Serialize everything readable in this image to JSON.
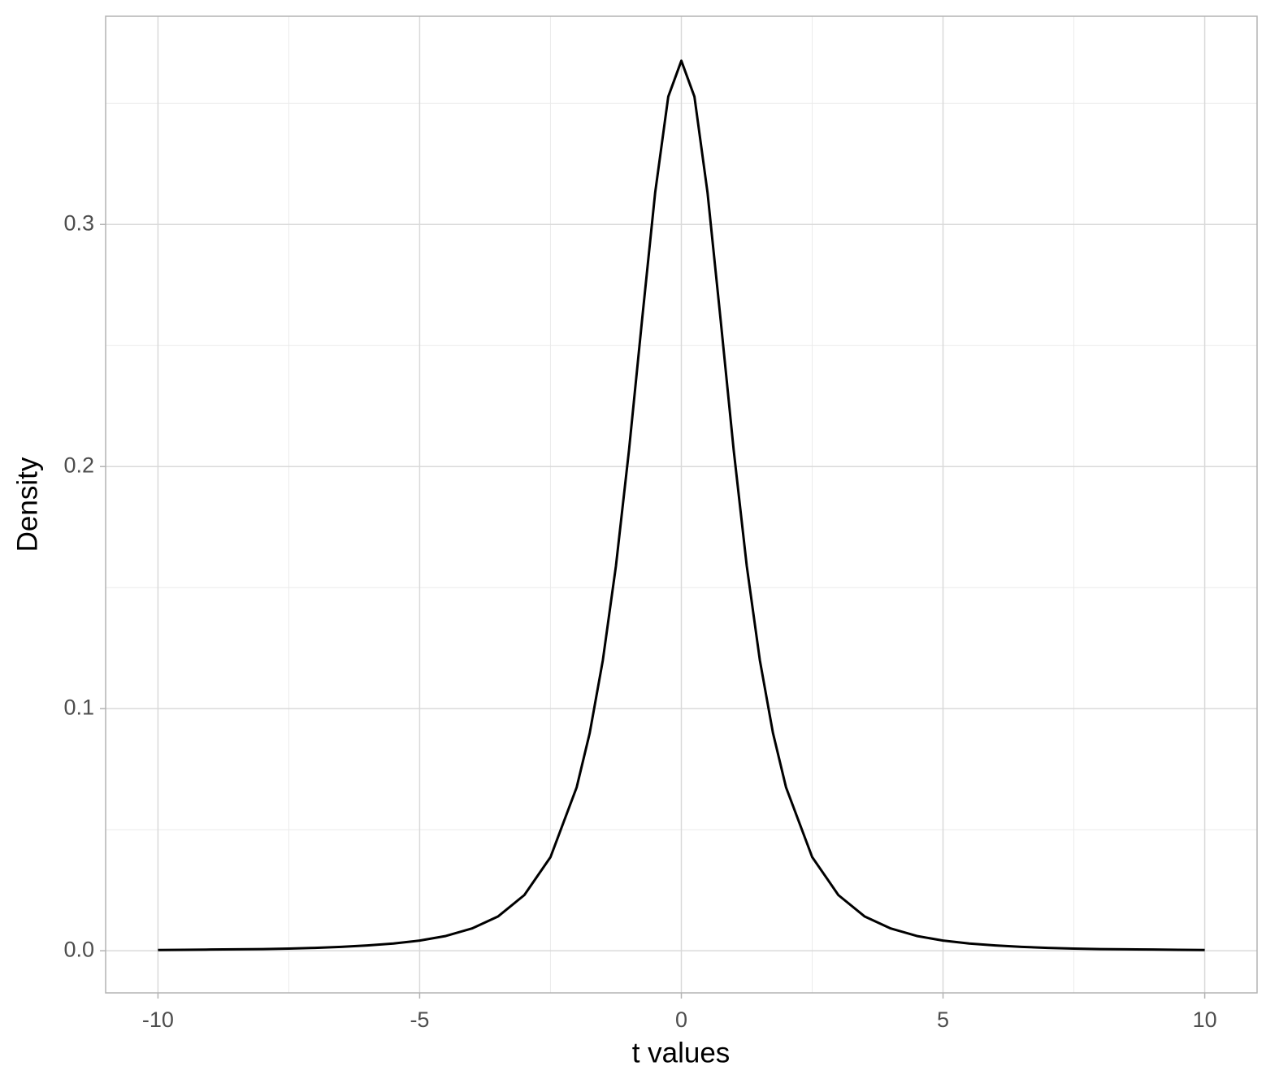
{
  "chart_data": {
    "type": "line",
    "x_label": "t values",
    "y_label": "Density",
    "x": [
      -10,
      -9.5,
      -9,
      -8.5,
      -8,
      -7.5,
      -7,
      -6.5,
      -6,
      -5.5,
      -5,
      -4.5,
      -4,
      -3.5,
      -3,
      -2.5,
      -2,
      -1.75,
      -1.5,
      -1.25,
      -1,
      -0.75,
      -0.5,
      -0.25,
      0,
      0.25,
      0.5,
      0.75,
      1,
      1.25,
      1.5,
      1.75,
      2,
      2.5,
      3,
      3.5,
      4,
      4.5,
      5,
      5.5,
      6,
      6.5,
      7,
      7.5,
      8,
      8.5,
      9,
      9.5,
      10
    ],
    "series": [
      {
        "color": "#000000",
        "values": [
          0.0003,
          0.0004,
          0.0005,
          0.0006,
          0.0007,
          0.0009,
          0.0012,
          0.0016,
          0.0022,
          0.003,
          0.0042,
          0.0061,
          0.0092,
          0.0142,
          0.023,
          0.0387,
          0.0675,
          0.09,
          0.12,
          0.1589,
          0.2068,
          0.2607,
          0.3132,
          0.3528,
          0.3676,
          0.3528,
          0.3132,
          0.2607,
          0.2068,
          0.1589,
          0.12,
          0.09,
          0.0675,
          0.0387,
          0.023,
          0.0142,
          0.0092,
          0.0061,
          0.0042,
          0.003,
          0.0022,
          0.0016,
          0.0012,
          0.0009,
          0.0007,
          0.0006,
          0.0005,
          0.0004,
          0.0003
        ]
      }
    ],
    "xlim": [
      -11,
      11
    ],
    "ylim": [
      -0.0174,
      0.386
    ],
    "xticks": [
      -10,
      -5,
      0,
      5,
      10
    ],
    "yticks": [
      {
        "value": 0,
        "label": "0.0"
      },
      0.1,
      0.2,
      0.3
    ],
    "grid": true
  }
}
